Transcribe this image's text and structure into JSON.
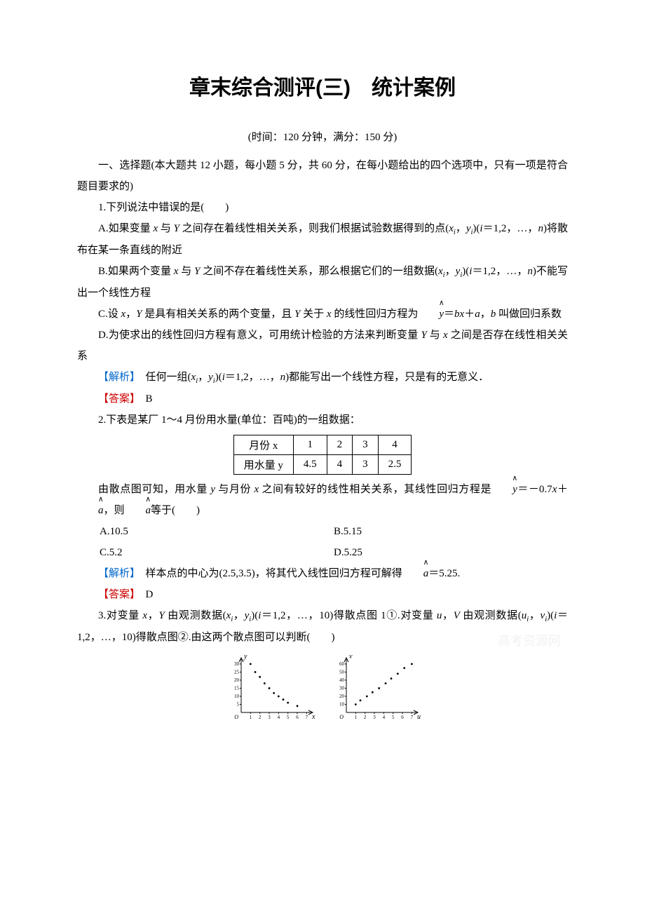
{
  "title": "章末综合测评(三)　统计案例",
  "subtitle": "(时间：120 分钟，满分：150 分)",
  "section_intro": "一、选择题(本大题共 12 小题，每小题 5 分，共 60 分，在每小题给出的四个选项中，只有一项是符合题目要求的)",
  "q1": {
    "stem": "1.下列说法中错误的是(　　)",
    "optA_pre": "A.如果变量 ",
    "optA_mid1": " 与 ",
    "optA_mid2": " 之间存在着线性相关关系，则我们根据试验数据得到的点(",
    "optA_mid3": "，",
    "optA_mid4": ")(",
    "optA_mid5": "＝1,2，…，",
    "optA_end": ")将散布在某一条直线的附近",
    "optB_pre": "B.如果两个变量 ",
    "optB_mid1": " 与 ",
    "optB_mid2": " 之间不存在着线性关系，那么根据它们的一组数据(",
    "optB_mid3": "，",
    "optB_mid4": ")(",
    "optB_mid5": "＝1,2，…，",
    "optB_end": ")不能写出一个线性方程",
    "optC_pre": "C.设 ",
    "optC_mid1": "，",
    "optC_mid2": " 是具有相关关系的两个变量，且 ",
    "optC_mid3": " 关于 ",
    "optC_mid4": " 的线性回归方程为",
    "optC_mid5": "＝",
    "optC_mid6": "＋",
    "optC_mid7": "，",
    "optC_end": " 叫做回归系数",
    "optD_pre": "D.为使求出的线性回归方程有意义，可用统计检验的方法来判断变量 ",
    "optD_mid1": " 与 ",
    "optD_end": " 之间是否存在线性相关关系",
    "analyze_label": "【解析】",
    "analyze_pre": "　任何一组(",
    "analyze_mid1": "，",
    "analyze_mid2": ")(",
    "analyze_mid3": "＝1,2，…，",
    "analyze_end": ")都能写出一个线性方程，只是有的无意义．",
    "answer_label": "【答案】",
    "answer": "　B"
  },
  "q2": {
    "stem": "2.下表是某厂 1～4 月份用水量(单位：百吨)的一组数据：",
    "table": {
      "headers": [
        "月份 x",
        "1",
        "2",
        "3",
        "4"
      ],
      "row": [
        "用水量 y",
        "4.5",
        "4",
        "3",
        "2.5"
      ],
      "border_color": "#000000",
      "cell_pad_v": 3,
      "cell_pad_h": 14
    },
    "line2_pre": "由散点图可知，用水量 ",
    "line2_mid1": " 与月份 ",
    "line2_mid2": " 之间有较好的线性相关关系，其线性回归方程是",
    "line2_mid3": "＝－0.7",
    "line2_mid4": "＋",
    "line2_mid5": "，则",
    "line2_end": "等于(　　)",
    "optA": "A.10.5",
    "optB": "B.5.15",
    "optC": "C.5.2",
    "optD": "D.5.25",
    "analyze_label": "【解析】",
    "analyze_pre": "　样本点的中心为(2.5,3.5)，将其代入线性回归方程可解得",
    "analyze_end": "＝5.25.",
    "answer_label": "【答案】",
    "answer": "　D"
  },
  "q3": {
    "stem_pre": "3.对变量 ",
    "stem_mid1": "，",
    "stem_mid2": " 由观测数据(",
    "stem_mid3": "，",
    "stem_mid4": ")(",
    "stem_mid5": "＝1,2，…，10)得散点图 1①.对变量 ",
    "stem_mid6": "，",
    "stem_mid7": " 由观测数据(",
    "stem_mid8": "，",
    "stem_mid9": ")(",
    "stem_mid10": "＝1,2，…，10)得散点图②.由这两个散点图可以判断(　　)"
  },
  "scatter1": {
    "type": "scatter",
    "xlabel": "x",
    "ylabel": "y",
    "xlim": [
      0,
      7.5
    ],
    "ylim": [
      0,
      33
    ],
    "xticks": [
      1,
      2,
      3,
      4,
      5,
      6,
      7
    ],
    "yticks": [
      5,
      10,
      15,
      20,
      25,
      30
    ],
    "xtick_labels": [
      "1",
      "2",
      "3",
      "4",
      "5",
      "6",
      "7"
    ],
    "ytick_labels": [
      "5",
      "10",
      "15",
      "20",
      "25",
      "30"
    ],
    "points": [
      [
        1,
        30
      ],
      [
        1.5,
        25
      ],
      [
        2,
        22
      ],
      [
        2.5,
        18
      ],
      [
        3,
        15
      ],
      [
        3.5,
        12
      ],
      [
        4,
        10
      ],
      [
        4.5,
        8
      ],
      [
        5,
        6
      ],
      [
        6,
        4
      ]
    ],
    "point_color": "#000000",
    "axis_color": "#000000",
    "tick_fontsize": 7,
    "label_fontsize": 10,
    "origin_label": "O"
  },
  "scatter2": {
    "type": "scatter",
    "xlabel": "u",
    "ylabel": "v",
    "xlim": [
      0,
      7.5
    ],
    "ylim": [
      0,
      66
    ],
    "xticks": [
      1,
      2,
      3,
      4,
      5,
      6,
      7
    ],
    "yticks": [
      10,
      20,
      30,
      40,
      50,
      60
    ],
    "xtick_labels": [
      "1",
      "2",
      "3",
      "4",
      "5",
      "6",
      "7"
    ],
    "ytick_labels": [
      "10",
      "20",
      "30",
      "40",
      "50",
      "60"
    ],
    "points": [
      [
        1,
        10
      ],
      [
        1.5,
        15
      ],
      [
        2.2,
        20
      ],
      [
        2.8,
        25
      ],
      [
        3.5,
        30
      ],
      [
        4.2,
        36
      ],
      [
        4.8,
        42
      ],
      [
        5.5,
        48
      ],
      [
        6.2,
        55
      ],
      [
        7,
        60
      ]
    ],
    "point_color": "#000000",
    "axis_color": "#000000",
    "tick_fontsize": 7,
    "label_fontsize": 10,
    "origin_label": "O"
  },
  "vars": {
    "x": "x",
    "Y": "Y",
    "y": "y",
    "i": "i",
    "n": "n",
    "xi": "x",
    "yi": "y",
    "a": "a",
    "b": "b",
    "u": "u",
    "V": "V",
    "v": "v",
    "ui": "u",
    "vi": "v"
  },
  "watermark": "高考资源网"
}
